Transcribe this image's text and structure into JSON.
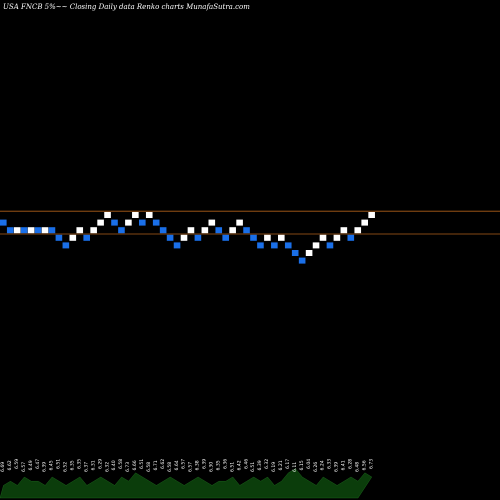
{
  "chart_data": {
    "type": "renko",
    "title": "USA FNCB 5%~~  Closing Daily data  Renko  charts MunafaSutra.com",
    "box_size": 0.1,
    "colors": {
      "up": "#ffffff",
      "down": "#1a6fe8",
      "lines": "#b0601a",
      "volume": "#0b3d0b"
    },
    "reference_lines": [
      6.8,
      6.5
    ],
    "bricks": [
      {
        "low": 6.6,
        "dir": "down"
      },
      {
        "low": 6.5,
        "dir": "down"
      },
      {
        "low": 6.5,
        "dir": "up"
      },
      {
        "low": 6.5,
        "dir": "down"
      },
      {
        "low": 6.5,
        "dir": "up"
      },
      {
        "low": 6.5,
        "dir": "down"
      },
      {
        "low": 6.5,
        "dir": "up"
      },
      {
        "low": 6.5,
        "dir": "down"
      },
      {
        "low": 6.4,
        "dir": "down"
      },
      {
        "low": 6.3,
        "dir": "down"
      },
      {
        "low": 6.4,
        "dir": "up"
      },
      {
        "low": 6.5,
        "dir": "up"
      },
      {
        "low": 6.4,
        "dir": "down"
      },
      {
        "low": 6.5,
        "dir": "up"
      },
      {
        "low": 6.6,
        "dir": "up"
      },
      {
        "low": 6.7,
        "dir": "up"
      },
      {
        "low": 6.6,
        "dir": "down"
      },
      {
        "low": 6.5,
        "dir": "down"
      },
      {
        "low": 6.6,
        "dir": "up"
      },
      {
        "low": 6.7,
        "dir": "up"
      },
      {
        "low": 6.6,
        "dir": "down"
      },
      {
        "low": 6.7,
        "dir": "up"
      },
      {
        "low": 6.6,
        "dir": "down"
      },
      {
        "low": 6.5,
        "dir": "down"
      },
      {
        "low": 6.4,
        "dir": "down"
      },
      {
        "low": 6.3,
        "dir": "down"
      },
      {
        "low": 6.4,
        "dir": "up"
      },
      {
        "low": 6.5,
        "dir": "up"
      },
      {
        "low": 6.4,
        "dir": "down"
      },
      {
        "low": 6.5,
        "dir": "up"
      },
      {
        "low": 6.6,
        "dir": "up"
      },
      {
        "low": 6.5,
        "dir": "down"
      },
      {
        "low": 6.4,
        "dir": "down"
      },
      {
        "low": 6.5,
        "dir": "up"
      },
      {
        "low": 6.6,
        "dir": "up"
      },
      {
        "low": 6.5,
        "dir": "down"
      },
      {
        "low": 6.4,
        "dir": "down"
      },
      {
        "low": 6.3,
        "dir": "down"
      },
      {
        "low": 6.4,
        "dir": "up"
      },
      {
        "low": 6.3,
        "dir": "down"
      },
      {
        "low": 6.4,
        "dir": "up"
      },
      {
        "low": 6.3,
        "dir": "down"
      },
      {
        "low": 6.2,
        "dir": "down"
      },
      {
        "low": 6.1,
        "dir": "down"
      },
      {
        "low": 6.2,
        "dir": "up"
      },
      {
        "low": 6.3,
        "dir": "up"
      },
      {
        "low": 6.4,
        "dir": "up"
      },
      {
        "low": 6.3,
        "dir": "down"
      },
      {
        "low": 6.4,
        "dir": "up"
      },
      {
        "low": 6.5,
        "dir": "up"
      },
      {
        "low": 6.4,
        "dir": "down"
      },
      {
        "low": 6.5,
        "dir": "up"
      },
      {
        "low": 6.6,
        "dir": "up"
      },
      {
        "low": 6.7,
        "dir": "up"
      }
    ],
    "volume": {
      "values": [
        3,
        4,
        3,
        5,
        4,
        4,
        3,
        5,
        4,
        3,
        4,
        5,
        3,
        4,
        5,
        4,
        3,
        5,
        4,
        6,
        5,
        4,
        3,
        4,
        5,
        4,
        3,
        4,
        5,
        4,
        3,
        4,
        4,
        5,
        3,
        4,
        5,
        4,
        5,
        3,
        4,
        6,
        7,
        5,
        4,
        3,
        5,
        4,
        3,
        4,
        5,
        4,
        6,
        5
      ],
      "labels": [
        "6.69",
        "6.62",
        "6.59",
        "6.57",
        "6.49",
        "6.47",
        "6.39",
        "6.45",
        "6.51",
        "6.52",
        "6.35",
        "6.35",
        "6.37",
        "6.31",
        "6.29",
        "6.32",
        "6.40",
        "6.58",
        "6.73",
        "6.66",
        "6.51",
        "6.58",
        "6.71",
        "6.62",
        "6.58",
        "6.64",
        "6.57",
        "6.57",
        "6.38",
        "6.39",
        "6.30",
        "6.35",
        "6.36",
        "6.51",
        "6.42",
        "6.46",
        "6.51",
        "6.39",
        "6.32",
        "6.19",
        "6.21",
        "6.17",
        "6.11",
        "6.15",
        "6.04",
        "6.26",
        "6.24",
        "6.33",
        "6.39",
        "6.41",
        "6.28",
        "6.48",
        "6.56",
        "6.73"
      ]
    }
  }
}
